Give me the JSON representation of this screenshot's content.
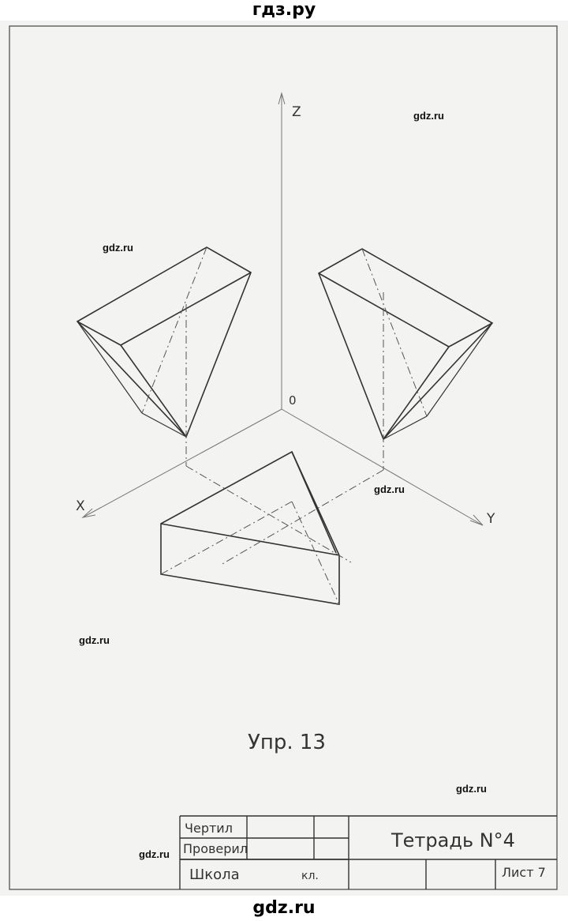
{
  "site": {
    "header": "гдз.ру",
    "footer": "gdz.ru"
  },
  "watermarks": [
    "gdz.ru",
    "gdz.ru",
    "gdz.ru",
    "gdz.ru",
    "gdz.ru",
    "gdz.ru"
  ],
  "axes": {
    "z": "Z",
    "x": "X",
    "y": "Y",
    "origin": "0"
  },
  "caption": "Упр. 13",
  "title_block": {
    "drew": "Чертил",
    "checked": "Проверил",
    "school": "Школа",
    "grade": "кл.",
    "notebook": "Тетрадь N°4",
    "sheet": "Лист 7"
  }
}
